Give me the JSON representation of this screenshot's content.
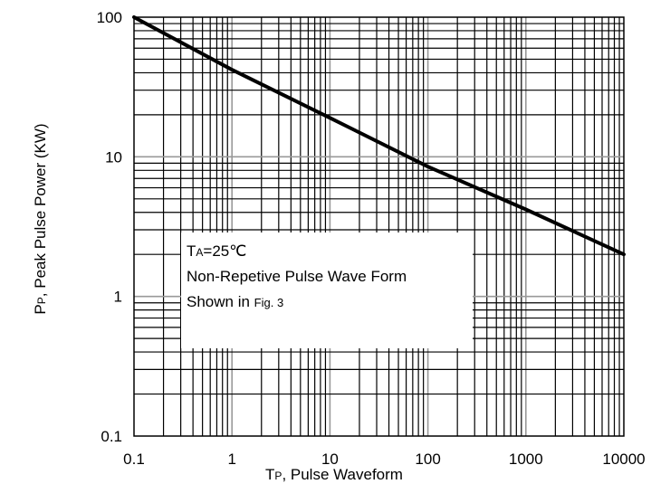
{
  "chart_data": {
    "type": "line",
    "x_scale": "log",
    "y_scale": "log",
    "xlim": [
      0.1,
      10000
    ],
    "ylim": [
      0.1,
      100
    ],
    "grid": true,
    "x_ticks": [
      "0.1",
      "1",
      "10",
      "100",
      "1000",
      "10000"
    ],
    "y_ticks": [
      "0.1",
      "1",
      "10",
      "100"
    ],
    "xlabel": {
      "main": "T",
      "sub": "P",
      "rest": ", Pulse Waveform"
    },
    "ylabel": {
      "main": "P",
      "sub": "P",
      "rest": ", Peak Pulse Power  (KW)"
    },
    "series": [
      {
        "color": "#000000",
        "x": [
          0.1,
          1,
          10,
          100,
          1000,
          10000
        ],
        "y": [
          100,
          42,
          19,
          8.5,
          4.2,
          2
        ]
      }
    ],
    "annotation": {
      "line1_main": "T",
      "line1_sub": "A",
      "line1_rest": "=25℃",
      "line2": "Non-Repetive Pulse Wave Form",
      "line3_main": "Shown in ",
      "line3_small": "Fig. 3"
    }
  }
}
